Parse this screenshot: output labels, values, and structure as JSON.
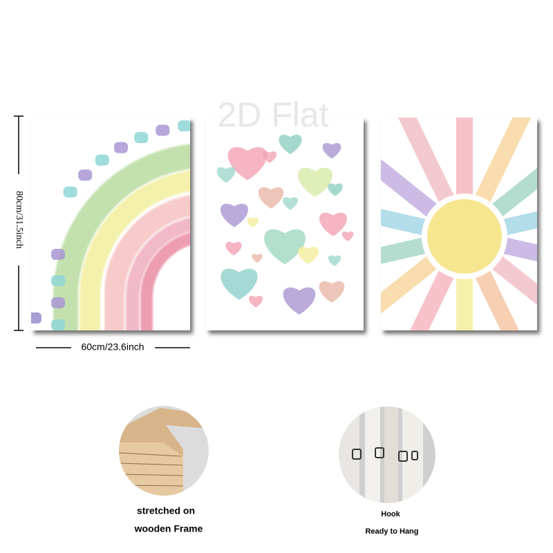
{
  "watermark": "2D Flat",
  "dimensions": {
    "height": "80cm/31.5inch",
    "width": "60cm/23.6inch"
  },
  "features": [
    {
      "lines": [
        "stretched on",
        "wooden Frame"
      ]
    },
    {
      "lines": [
        "Hook",
        "Ready to Hang"
      ]
    }
  ]
}
